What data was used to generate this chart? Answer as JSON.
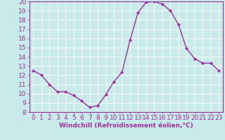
{
  "x": [
    0,
    1,
    2,
    3,
    4,
    5,
    6,
    7,
    8,
    9,
    10,
    11,
    12,
    13,
    14,
    15,
    16,
    17,
    18,
    19,
    20,
    21,
    22,
    23
  ],
  "y": [
    12.5,
    12.0,
    11.0,
    10.2,
    10.2,
    9.8,
    9.2,
    8.5,
    8.7,
    9.9,
    11.3,
    12.3,
    15.8,
    18.8,
    19.9,
    20.0,
    19.7,
    19.0,
    17.5,
    14.9,
    13.8,
    13.3,
    13.3,
    12.5
  ],
  "line_color": "#993399",
  "marker": "D",
  "marker_size": 2.0,
  "bg_color": "#c8eaea",
  "grid_color": "#ffffff",
  "xlabel": "Windchill (Refroidissement éolien,°C)",
  "xlabel_color": "#993399",
  "tick_color": "#993399",
  "label_color": "#993399",
  "ylim": [
    8,
    20
  ],
  "xlim": [
    -0.5,
    23.5
  ],
  "yticks": [
    8,
    9,
    10,
    11,
    12,
    13,
    14,
    15,
    16,
    17,
    18,
    19,
    20
  ],
  "xticks": [
    0,
    1,
    2,
    3,
    4,
    5,
    6,
    7,
    8,
    9,
    10,
    11,
    12,
    13,
    14,
    15,
    16,
    17,
    18,
    19,
    20,
    21,
    22,
    23
  ],
  "font_size_ticks": 6.5,
  "font_size_xlabel": 6.5,
  "spine_color": "#993399",
  "linewidth": 1.0
}
